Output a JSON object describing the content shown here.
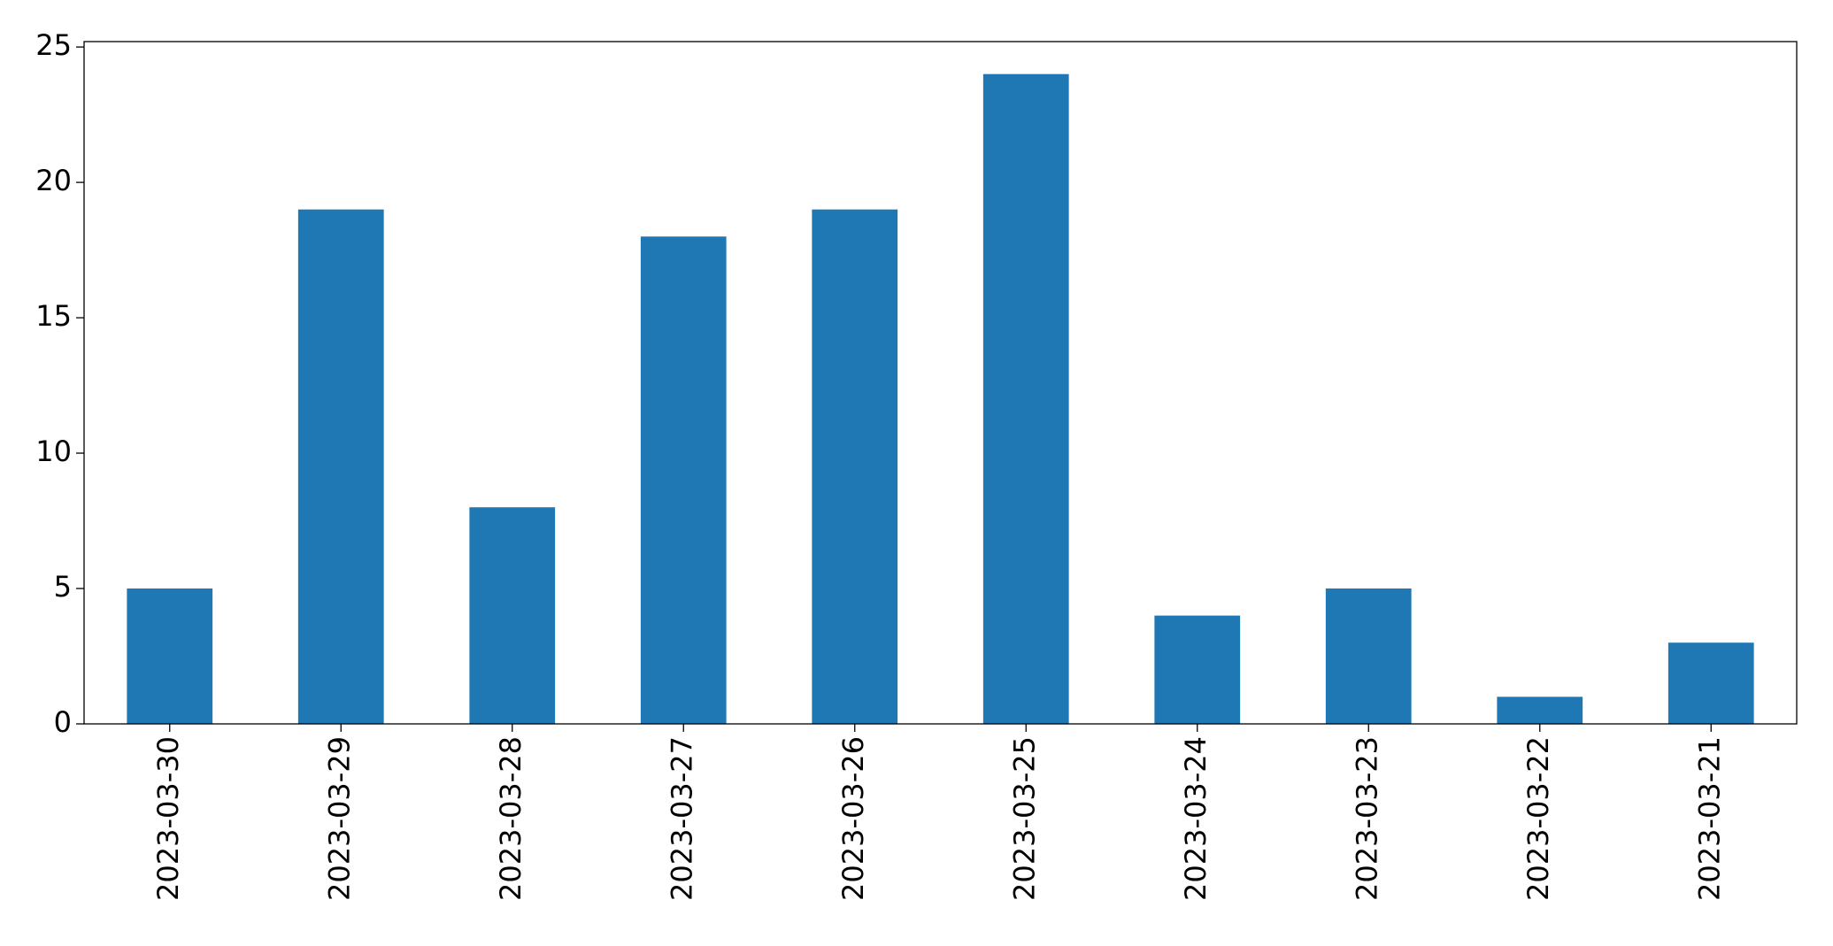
{
  "chart_data": {
    "type": "bar",
    "categories": [
      "2023-03-30",
      "2023-03-29",
      "2023-03-28",
      "2023-03-27",
      "2023-03-26",
      "2023-03-25",
      "2023-03-24",
      "2023-03-23",
      "2023-03-22",
      "2023-03-21"
    ],
    "values": [
      5,
      19,
      8,
      18,
      19,
      24,
      4,
      5,
      1,
      3
    ],
    "color": "#1f77b4",
    "ylim": [
      0,
      25.2
    ],
    "yticks": [
      0,
      5,
      10,
      15,
      20,
      25
    ],
    "grid": false
  }
}
